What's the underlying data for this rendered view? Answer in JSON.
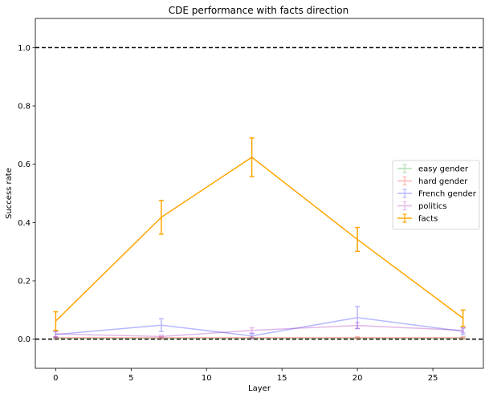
{
  "chart_data": {
    "type": "line",
    "title": "CDE performance with facts direction",
    "xlabel": "Layer",
    "ylabel": "Success rate",
    "xlim": [
      -1.35,
      28.35
    ],
    "ylim": [
      -0.1,
      1.1
    ],
    "xticks": [
      0,
      5,
      10,
      15,
      20,
      25
    ],
    "yticks": [
      0.0,
      0.2,
      0.4,
      0.6,
      0.8,
      1.0
    ],
    "ytick_labels": [
      "0.0",
      "0.2",
      "0.4",
      "0.6",
      "0.8",
      "1.0"
    ],
    "reference_lines": [
      0.0,
      1.0
    ],
    "legend_position": "center-right",
    "grid": false,
    "series": [
      {
        "name": "easy gender",
        "color": "#2ca02c",
        "alpha": 0.35,
        "x": [
          0,
          7,
          13,
          20,
          27
        ],
        "y": [
          0.003,
          0.003,
          0.003,
          0.003,
          0.003
        ],
        "err": [
          0.002,
          0.002,
          0.002,
          0.002,
          0.002
        ]
      },
      {
        "name": "hard gender",
        "color": "#ff2a2a",
        "alpha": 0.35,
        "x": [
          0,
          7,
          13,
          20,
          27
        ],
        "y": [
          0.005,
          0.005,
          0.005,
          0.005,
          0.005
        ],
        "err": [
          0.003,
          0.003,
          0.003,
          0.003,
          0.003
        ]
      },
      {
        "name": "French gender",
        "color": "#3333ff",
        "alpha": 0.35,
        "x": [
          0,
          7,
          13,
          20,
          27
        ],
        "y": [
          0.016,
          0.048,
          0.011,
          0.074,
          0.027
        ],
        "err": [
          0.01,
          0.022,
          0.008,
          0.038,
          0.012
        ]
      },
      {
        "name": "politics",
        "color": "#aa33bb",
        "alpha": 0.35,
        "x": [
          0,
          7,
          13,
          20,
          27
        ],
        "y": [
          0.018,
          0.009,
          0.03,
          0.047,
          0.03
        ],
        "err": [
          0.01,
          0.005,
          0.009,
          0.01,
          0.008
        ]
      },
      {
        "name": "facts",
        "color": "#ffa500",
        "alpha": 1.0,
        "x": [
          0,
          7,
          13,
          20,
          27
        ],
        "y": [
          0.062,
          0.418,
          0.624,
          0.342,
          0.072
        ],
        "err": [
          0.032,
          0.058,
          0.066,
          0.041,
          0.028
        ]
      }
    ]
  }
}
